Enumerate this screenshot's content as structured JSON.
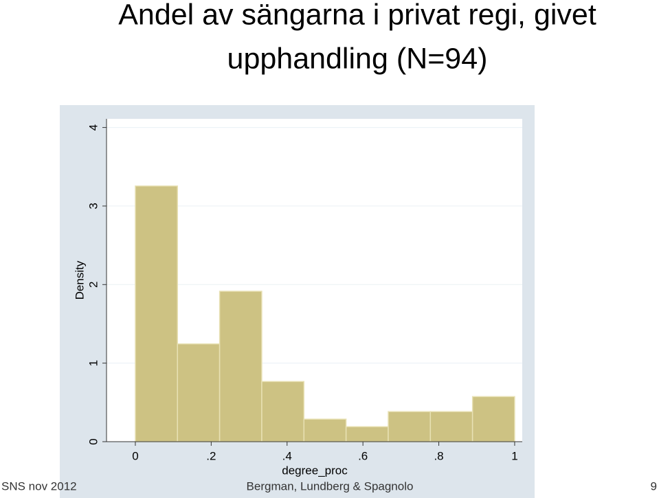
{
  "chart_data": {
    "type": "histogram",
    "title": [
      "Andel av sängarna i privat regi, givet",
      "upphandling (N=94)"
    ],
    "x_label": "degree_proc",
    "y_label": "Density",
    "bins": [
      0,
      0.1111,
      0.2222,
      0.3333,
      0.4444,
      0.5556,
      0.6667,
      0.7778,
      0.8889,
      1
    ],
    "values": [
      3.255,
      1.245,
      1.915,
      0.766,
      0.287,
      0.191,
      0.383,
      0.383,
      0.574
    ],
    "color": "#cdc283",
    "xlim": [
      -0.076,
      1.02
    ],
    "xticks": [
      0,
      {
        "value": 0.2,
        "label": ".2"
      },
      {
        "value": 0.4,
        "label": ".4"
      },
      {
        "value": 0.6,
        "label": ".6"
      },
      {
        "value": 0.8,
        "label": ".8"
      },
      1
    ],
    "ylim": [
      0,
      4.11
    ],
    "yticks": [
      0,
      1,
      2,
      3,
      4
    ],
    "grid": true
  },
  "footer": {
    "left": "SNS nov 2012",
    "center": "Bergman, Lundberg & Spagnolo",
    "page": "9"
  }
}
